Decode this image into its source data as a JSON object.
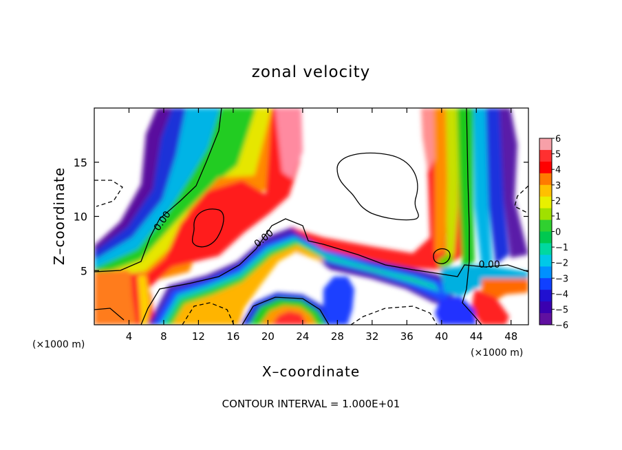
{
  "chart_data": {
    "type": "heatmap",
    "title": "zonal velocity",
    "xlabel": "X–coordinate",
    "ylabel": "Z–coordinate",
    "x_units": "(×1000 m)",
    "y_units": "(×1000 m)",
    "xlim": [
      0,
      50
    ],
    "ylim": [
      0,
      20
    ],
    "x_ticks": [
      4,
      8,
      12,
      16,
      20,
      24,
      28,
      32,
      36,
      40,
      44,
      48
    ],
    "y_ticks": [
      5,
      10,
      15
    ],
    "colorbar": {
      "min": -6,
      "max": 6,
      "labels": [
        6,
        5,
        4,
        3,
        2,
        1,
        0,
        -1,
        -2,
        -3,
        -4,
        -5,
        -6
      ]
    },
    "contour_labels": [
      {
        "text": "0.00",
        "x": 7.8,
        "y": 9.6
      },
      {
        "text": "0.00",
        "x": 19.5,
        "y": 8.0
      },
      {
        "text": "0.00",
        "x": 45.5,
        "y": 5.6
      }
    ],
    "footer": "CONTOUR INTERVAL = 1.000E+01"
  }
}
